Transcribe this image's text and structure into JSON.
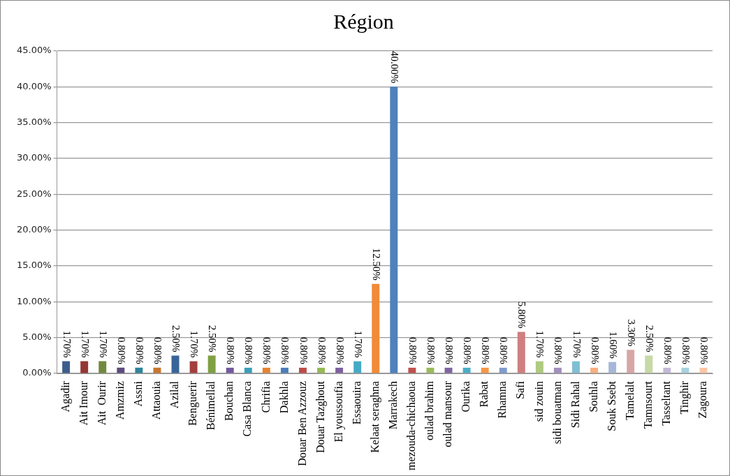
{
  "chart_data": {
    "type": "bar",
    "title": "Région",
    "categories": [
      "Agadir",
      "Ait Imour",
      "Ait  Ourir",
      "Amzmiz",
      "Assni",
      "Attaouia",
      "Azilal",
      "Benguerir",
      "Bénimellal",
      "Bouchan",
      "Casa Blanca",
      "Chrifia",
      "Dakhla",
      "Douar Ben Azzouz",
      "Douar Tazghout",
      "El youssoufia",
      "Essaouira",
      "Kelaat seraghna",
      "Marrakech",
      "mezouda-chichaoua",
      "oulad brahim",
      "oulad mansour",
      "Ourika",
      "Rabat",
      "Rhamna",
      "Safi",
      "sid zouin",
      "sidi bouatman",
      "Sidi Rahal",
      "Souhla",
      "Souk Ssebt",
      "Tamelalt",
      "Tamnsourt",
      "Tasseltant",
      "Tinghir",
      "Zagoura"
    ],
    "values": [
      1.7,
      1.7,
      1.7,
      0.8,
      0.8,
      0.8,
      2.5,
      1.7,
      2.5,
      0.8,
      0.8,
      0.8,
      0.8,
      0.8,
      0.8,
      0.8,
      1.7,
      12.5,
      40,
      0.8,
      0.8,
      0.8,
      0.8,
      0.8,
      0.8,
      5.8,
      1.7,
      0.8,
      1.7,
      0.8,
      1.6,
      3.3,
      2.5,
      0.8,
      0.8,
      0.8
    ],
    "value_labels": [
      "1.70%",
      "1.70%",
      "1.70%",
      "0.80%",
      "0.80%",
      "0.80%",
      "2.50%",
      "1.70%",
      "2.50%",
      "0.80%",
      "0.80%",
      "0.80%",
      "0.80%",
      "0.80%",
      "0.80%",
      "0.80%",
      "1.70%",
      "12.50%",
      "40.00%",
      "0.80%",
      "0.80%",
      "0.80%",
      "0.80%",
      "0.80%",
      "0.80%",
      "5.80%",
      "1.70%",
      "0.80%",
      "1.70%",
      "0.80%",
      "1.60%",
      "3.30%",
      "2.50%",
      "0.80%",
      "0.80%",
      "0.80%"
    ],
    "colors": [
      "#3b5e8c",
      "#943634",
      "#71893f",
      "#5e4a7e",
      "#2e8599",
      "#c7762e",
      "#386599",
      "#a33f3c",
      "#80a044",
      "#7359a0",
      "#3a9fb8",
      "#e6832e",
      "#4a7ebb",
      "#be4b48",
      "#98b954",
      "#7d60a0",
      "#46aac5",
      "#f08b38",
      "#4f81bd",
      "#c0504d",
      "#9bbb59",
      "#8064a2",
      "#4bacc6",
      "#f79646",
      "#7f9ccf",
      "#cf7f7f",
      "#afcb7f",
      "#a08fbf",
      "#7fbfd4",
      "#f9ae7f",
      "#a6b7d9",
      "#d9a6a6",
      "#c6d9a6",
      "#c3b8d6",
      "#a6d2df",
      "#fbc6a6"
    ],
    "ylim": [
      0,
      45
    ],
    "yticks": [
      {
        "value": 0,
        "label": "0.00%"
      },
      {
        "value": 5,
        "label": "5.00%"
      },
      {
        "value": 10,
        "label": "10.00%"
      },
      {
        "value": 15,
        "label": "15.00%"
      },
      {
        "value": 20,
        "label": "20.00%"
      },
      {
        "value": 25,
        "label": "25.00%"
      },
      {
        "value": 30,
        "label": "30.00%"
      },
      {
        "value": 35,
        "label": "35.00%"
      },
      {
        "value": 40,
        "label": "40.00%"
      },
      {
        "value": 45,
        "label": "45.00%"
      }
    ],
    "grid": "y"
  }
}
